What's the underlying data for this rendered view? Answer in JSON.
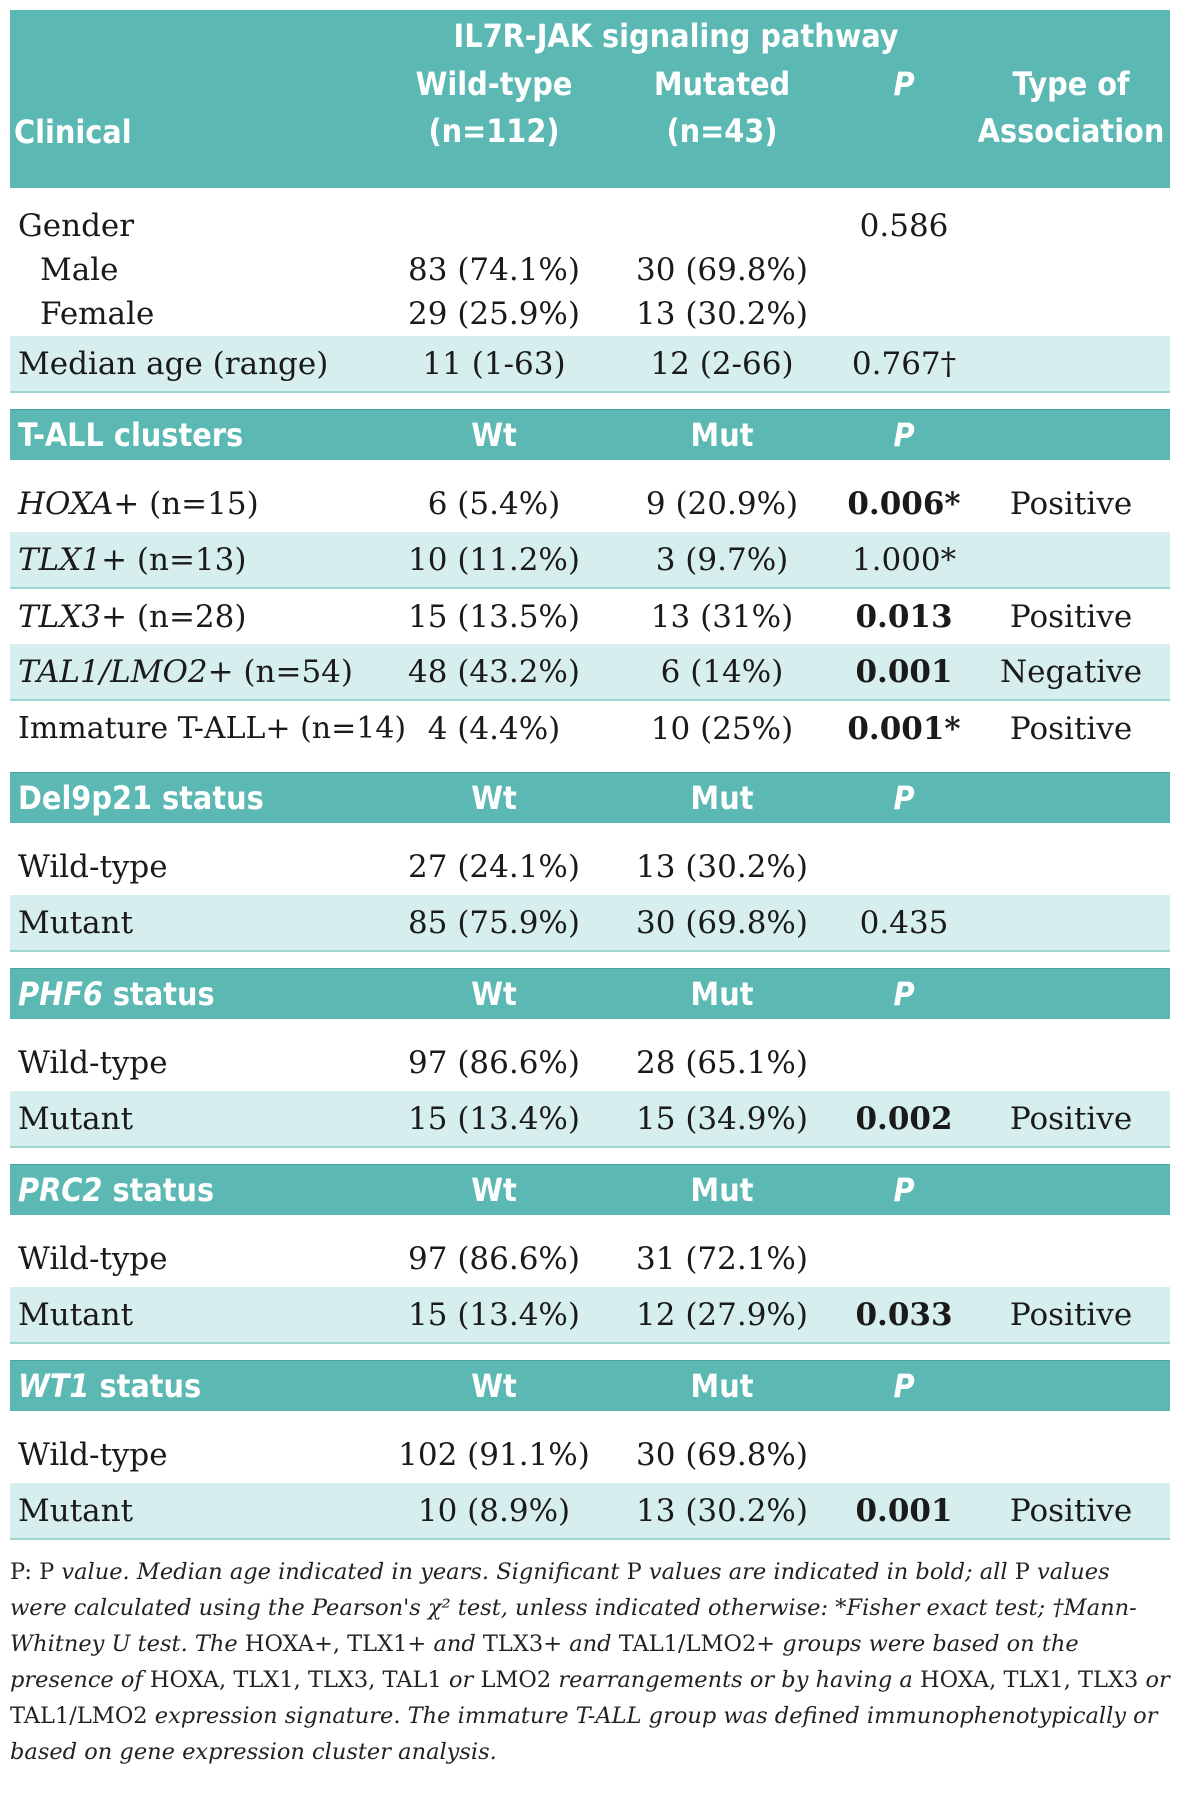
{
  "header": {
    "pathway": "IL7R-JAK signaling pathway",
    "clinical": "Clinical",
    "col_wt_1": "Wild-type",
    "col_wt_2": "(n=112)",
    "col_mut_1": "Mutated",
    "col_mut_2": "(n=43)",
    "col_p": "P",
    "col_assoc_1": "Type of",
    "col_assoc_2": "Association"
  },
  "clinical": {
    "gender_label": "Gender",
    "gender_p": "0.586",
    "male": {
      "label": "Male",
      "wt": "83 (74.1%)",
      "mut": "30 (69.8%)"
    },
    "female": {
      "label": "Female",
      "wt": "29 (25.9%)",
      "mut": "13 (30.2%)"
    },
    "age": {
      "label": "Median age (range)",
      "wt": "11 (1-63)",
      "mut": "12 (2-66)",
      "p": "0.767†"
    }
  },
  "sections": {
    "tall": {
      "title": "T-ALL clusters",
      "wt": "Wt",
      "mut": "Mut",
      "p": "P"
    },
    "del9p21": {
      "title": "Del9p21 status",
      "wt": "Wt",
      "mut": "Mut",
      "p": "P"
    },
    "phf6": {
      "title_gene": "PHF6",
      "title_rest": " status",
      "wt": "Wt",
      "mut": "Mut",
      "p": "P"
    },
    "prc2": {
      "title_gene": "PRC2",
      "title_rest": " status",
      "wt": "Wt",
      "mut": "Mut",
      "p": "P"
    },
    "wt1": {
      "title_gene": "WT1",
      "title_rest": " status",
      "wt": "Wt",
      "mut": "Mut",
      "p": "P"
    }
  },
  "tall_rows": [
    {
      "gene": "HOXA",
      "rest": "+ (n=15)",
      "wt": "6 (5.4%)",
      "mut": "9 (20.9%)",
      "p": "0.006*",
      "assoc": "Positive"
    },
    {
      "gene": "TLX1",
      "rest": "+ (n=13)",
      "wt": "10 (11.2%)",
      "mut": "3 (9.7%)",
      "p": "1.000*",
      "assoc": ""
    },
    {
      "gene": "TLX3",
      "rest": "+ (n=28)",
      "wt": "15 (13.5%)",
      "mut": "13 (31%)",
      "p": "0.013",
      "assoc": "Positive"
    },
    {
      "gene": "TAL1/LMO2",
      "rest": "+ (n=54)",
      "wt": "48 (43.2%)",
      "mut": "6 (14%)",
      "p": "0.001",
      "assoc": "Negative"
    },
    {
      "gene": "",
      "rest": "Immature T-ALL+ (n=14)",
      "wt": "4 (4.4%)",
      "mut": "10 (25%)",
      "p": "0.001*",
      "assoc": "Positive"
    }
  ],
  "del9p21_rows": [
    {
      "label": "Wild-type",
      "wt": "27 (24.1%)",
      "mut": "13 (30.2%)",
      "p": "",
      "assoc": ""
    },
    {
      "label": "Mutant",
      "wt": "85 (75.9%)",
      "mut": "30 (69.8%)",
      "p": "0.435",
      "assoc": ""
    }
  ],
  "phf6_rows": [
    {
      "label": "Wild-type",
      "wt": "97 (86.6%)",
      "mut": "28 (65.1%)",
      "p": "",
      "assoc": ""
    },
    {
      "label": "Mutant",
      "wt": "15 (13.4%)",
      "mut": "15 (34.9%)",
      "p": "0.002",
      "assoc": "Positive"
    }
  ],
  "prc2_rows": [
    {
      "label": "Wild-type",
      "wt": "97 (86.6%)",
      "mut": "31 (72.1%)",
      "p": "",
      "assoc": ""
    },
    {
      "label": "Mutant",
      "wt": "15 (13.4%)",
      "mut": "12 (27.9%)",
      "p": "0.033",
      "assoc": "Positive"
    }
  ],
  "wt1_rows": [
    {
      "label": "Wild-type",
      "wt": "102 (91.1%)",
      "mut": "30 (69.8%)",
      "p": "",
      "assoc": ""
    },
    {
      "label": "Mutant",
      "wt": "10 (8.9%)",
      "mut": "13 (30.2%)",
      "p": "0.001",
      "assoc": "Positive"
    }
  ],
  "footnote": {
    "p1": "P: P ",
    "p2": "value. Median age indicated in years. Significant ",
    "p3": "P",
    "p4": " values are indicated in bold; all ",
    "p5": "P",
    "p6": " values were calculated using the Pearson's χ² test, unless indicated otherwise: *Fisher exact test; †Mann-Whitney U test. The ",
    "p7": "HOXA+, TLX1+",
    "p8": " and ",
    "p9": "TLX3+",
    "p10": " and ",
    "p11": "TAL1/LMO2+",
    "p12": " groups were based on the presence of ",
    "p13": "HOXA, TLX1, TLX3, TAL1",
    "p14": " or ",
    "p15": "LMO2",
    "p16": " rearrangements or by having a ",
    "p17": "HOXA, TLX1, TLX3",
    "p18": " or ",
    "p19": "TAL1/LMO2",
    "p20": " expression signature. The immature T-ALL group was defined immunophenotypically or based on gene expression cluster analysis."
  }
}
